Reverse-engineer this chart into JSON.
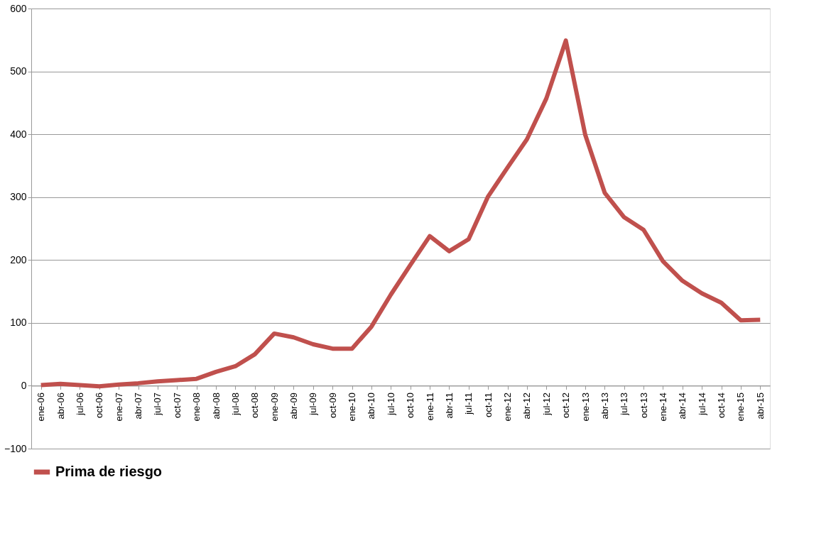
{
  "chart_data": {
    "type": "line",
    "categories": [
      "ene-06",
      "abr-06",
      "jul-06",
      "oct-06",
      "ene-07",
      "abr-07",
      "jul-07",
      "oct-07",
      "ene-08",
      "abr-08",
      "jul-08",
      "oct-08",
      "ene-09",
      "abr-09",
      "jul-09",
      "oct-09",
      "ene-10",
      "abr-10",
      "jul-10",
      "oct-10",
      "ene-11",
      "abr-11",
      "jul-11",
      "oct-11",
      "ene-12",
      "abr-12",
      "jul-12",
      "oct-12",
      "ene-13",
      "abr-13",
      "jul-13",
      "oct-13",
      "ene-14",
      "abr-14",
      "jul-14",
      "oct-14",
      "ene-15",
      "abr-15"
    ],
    "series": [
      {
        "name": "Prima de riesgo",
        "color": "#c0504d",
        "values": [
          1,
          3,
          1,
          -1,
          2,
          4,
          7,
          9,
          11,
          22,
          31,
          50,
          83,
          77,
          66,
          59,
          59,
          94,
          145,
          192,
          238,
          214,
          233,
          301,
          347,
          392,
          457,
          549,
          399,
          307,
          268,
          248,
          198,
          167,
          147,
          132,
          104,
          105
        ]
      }
    ],
    "ylim": [
      -100,
      600
    ],
    "yticks": [
      -100,
      0,
      100,
      200,
      300,
      400,
      500,
      600
    ],
    "grid": "y",
    "legend": "bottom",
    "marker": "none",
    "line_style": "solid"
  }
}
